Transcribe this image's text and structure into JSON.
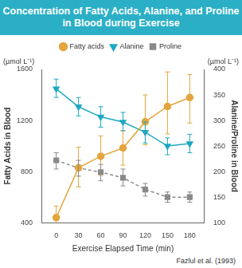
{
  "chart_data": {
    "type": "line",
    "title": "Concentration of Fatty Acids, Alanine, and Proline in Blood during Exercise",
    "x_label": "Exercise Elapsed Time (min)",
    "y_label": "Fatty Acids in Blood",
    "y2_label": "Alanine/Proline in Blood",
    "y_unit": "(µmol L⁻¹)",
    "y2_unit": "(µmol L⁻¹)",
    "source": "Fazlul et al. (1993)",
    "x": [
      0,
      30,
      60,
      90,
      120,
      150,
      180
    ],
    "xlim": [
      -20,
      200
    ],
    "xticks": [
      0,
      30,
      60,
      90,
      120,
      150,
      180
    ],
    "ylim": [
      400,
      1600
    ],
    "yticks": [
      400,
      800,
      1200,
      1600
    ],
    "y2lim": [
      100,
      400
    ],
    "y2ticks": [
      100,
      150,
      200,
      250,
      300,
      350,
      400
    ],
    "grid": false,
    "legend": "top",
    "series": [
      {
        "name": "Fatty acids",
        "color": "#e3a53d",
        "marker": "circle",
        "line_style": "solid",
        "values": [
          440,
          830,
          920,
          985,
          1190,
          1310,
          1380
        ],
        "error_low": [
          380,
          680,
          770,
          850,
          1010,
          1095,
          1180
        ],
        "error_high": [
          530,
          990,
          1080,
          1120,
          1400,
          1580,
          1560
        ]
      },
      {
        "name": "Alanine",
        "color": "#1ea8c2",
        "marker": "triangle-down",
        "line_style": "solid",
        "axis": "y2",
        "values": [
          362,
          327,
          307,
          297,
          277,
          250,
          255
        ],
        "error_low": [
          345,
          309,
          287,
          280,
          256,
          233,
          237
        ],
        "error_high": [
          381,
          345,
          327,
          316,
          297,
          266,
          273
        ]
      },
      {
        "name": "Proline",
        "color": "#8a8a8a",
        "marker": "square",
        "line_style": "dashed",
        "axis": "y2",
        "values": [
          222,
          207,
          199,
          188,
          165,
          150,
          150
        ],
        "error_low": [
          205,
          191,
          182,
          172,
          152,
          140,
          140
        ],
        "error_high": [
          237,
          222,
          214,
          205,
          177,
          160,
          160
        ]
      }
    ]
  }
}
